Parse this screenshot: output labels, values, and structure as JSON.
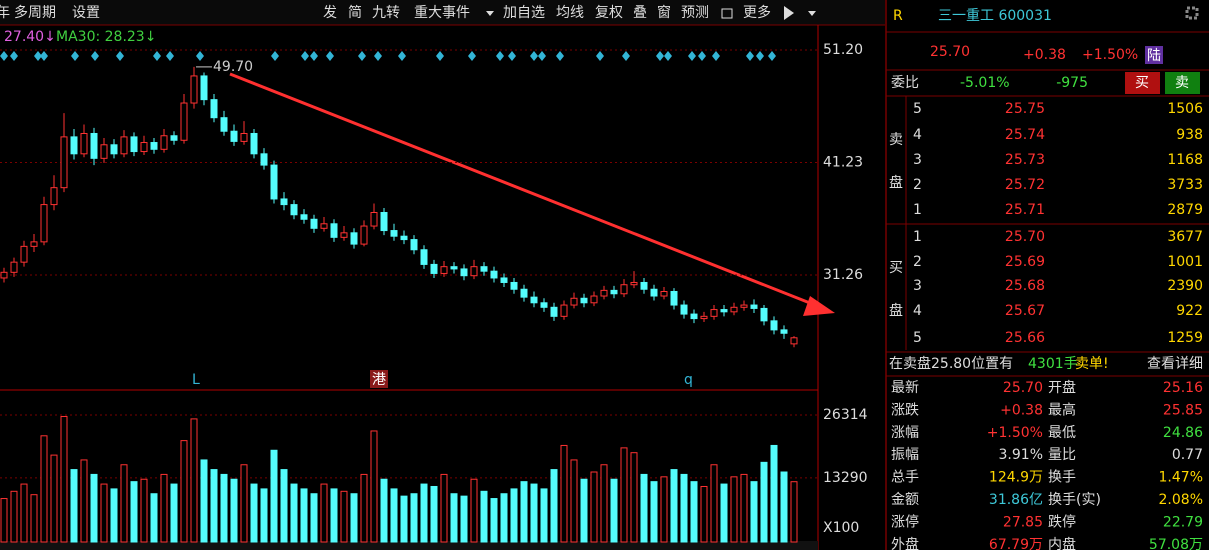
{
  "toolbar": {
    "left": [
      "年",
      "多周期",
      "设置"
    ],
    "right": [
      "发",
      "简",
      "九转",
      "重大事件",
      "加自选",
      "均线",
      "复权",
      "叠",
      "窗",
      "预测",
      "更多"
    ]
  },
  "legend": {
    "ma20": "27.40↓",
    "ma30": "MA30: 28.23↓"
  },
  "chart": {
    "price_ylim": [
      21.25,
      52.97
    ],
    "price_ticks": [
      {
        "value": 51.2,
        "label": "51.20"
      },
      {
        "value": 41.23,
        "label": "41.23"
      },
      {
        "value": 31.26,
        "label": "31.26"
      }
    ],
    "peak_label": {
      "value": 49.7,
      "label": "49.70"
    },
    "markers": [
      "L",
      "港",
      "q"
    ],
    "candles": [
      [
        31.0,
        31.9,
        30.6,
        31.5
      ],
      [
        31.5,
        32.8,
        31.1,
        32.4
      ],
      [
        32.4,
        34.3,
        32.0,
        33.8
      ],
      [
        33.8,
        34.9,
        33.3,
        34.2
      ],
      [
        34.2,
        38.2,
        33.9,
        37.5
      ],
      [
        37.5,
        40.1,
        37.0,
        39.0
      ],
      [
        39.0,
        45.6,
        38.6,
        43.5
      ],
      [
        43.5,
        44.2,
        41.5,
        42.0
      ],
      [
        42.0,
        44.6,
        41.7,
        43.8
      ],
      [
        43.8,
        44.3,
        41.0,
        41.6
      ],
      [
        41.6,
        43.4,
        41.2,
        42.8
      ],
      [
        42.8,
        43.3,
        41.6,
        42.0
      ],
      [
        42.0,
        44.1,
        41.7,
        43.5
      ],
      [
        43.5,
        43.9,
        41.8,
        42.2
      ],
      [
        42.2,
        43.6,
        41.9,
        43.0
      ],
      [
        43.0,
        43.4,
        42.0,
        42.4
      ],
      [
        42.4,
        44.2,
        42.1,
        43.6
      ],
      [
        43.6,
        44.0,
        42.8,
        43.2
      ],
      [
        43.2,
        47.3,
        42.9,
        46.5
      ],
      [
        46.5,
        49.7,
        46.0,
        48.9
      ],
      [
        48.9,
        49.2,
        46.3,
        46.8
      ],
      [
        46.8,
        47.3,
        44.8,
        45.2
      ],
      [
        45.2,
        45.8,
        43.6,
        44.0
      ],
      [
        44.0,
        44.6,
        42.7,
        43.1
      ],
      [
        43.1,
        44.9,
        42.8,
        43.8
      ],
      [
        43.8,
        44.2,
        41.6,
        42.0
      ],
      [
        42.0,
        42.5,
        40.6,
        41.0
      ],
      [
        41.0,
        41.4,
        37.6,
        38.0
      ],
      [
        38.0,
        38.6,
        37.0,
        37.5
      ],
      [
        37.5,
        37.9,
        36.2,
        36.6
      ],
      [
        36.6,
        37.1,
        35.8,
        36.2
      ],
      [
        36.2,
        36.6,
        35.0,
        35.4
      ],
      [
        35.4,
        36.4,
        35.1,
        35.8
      ],
      [
        35.8,
        36.2,
        34.2,
        34.6
      ],
      [
        34.6,
        35.6,
        34.3,
        35.0
      ],
      [
        35.0,
        35.4,
        33.6,
        34.0
      ],
      [
        34.0,
        36.1,
        33.8,
        35.6
      ],
      [
        35.6,
        37.6,
        35.3,
        36.8
      ],
      [
        36.8,
        37.2,
        34.8,
        35.2
      ],
      [
        35.2,
        35.8,
        34.3,
        34.7
      ],
      [
        34.7,
        35.2,
        34.0,
        34.4
      ],
      [
        34.4,
        34.8,
        33.1,
        33.5
      ],
      [
        33.5,
        33.9,
        31.8,
        32.2
      ],
      [
        32.2,
        32.6,
        31.0,
        31.4
      ],
      [
        31.4,
        32.5,
        31.1,
        32.0
      ],
      [
        32.0,
        32.4,
        31.4,
        31.8
      ],
      [
        31.8,
        32.2,
        30.8,
        31.2
      ],
      [
        31.2,
        32.6,
        30.9,
        32.0
      ],
      [
        32.0,
        32.4,
        31.2,
        31.6
      ],
      [
        31.6,
        32.0,
        30.6,
        31.0
      ],
      [
        31.0,
        31.4,
        30.2,
        30.6
      ],
      [
        30.6,
        31.0,
        29.6,
        30.0
      ],
      [
        30.0,
        30.4,
        28.9,
        29.3
      ],
      [
        29.3,
        29.8,
        28.4,
        28.8
      ],
      [
        28.8,
        29.2,
        28.0,
        28.4
      ],
      [
        28.4,
        28.8,
        27.2,
        27.6
      ],
      [
        27.6,
        29.0,
        27.3,
        28.6
      ],
      [
        28.6,
        29.7,
        28.3,
        29.2
      ],
      [
        29.2,
        29.6,
        28.4,
        28.8
      ],
      [
        28.8,
        29.8,
        28.5,
        29.4
      ],
      [
        29.4,
        30.3,
        29.1,
        29.9
      ],
      [
        29.9,
        30.3,
        29.2,
        29.6
      ],
      [
        29.6,
        30.9,
        29.3,
        30.4
      ],
      [
        30.4,
        31.6,
        30.1,
        30.6
      ],
      [
        30.6,
        31.0,
        29.6,
        30.0
      ],
      [
        30.0,
        30.4,
        29.0,
        29.4
      ],
      [
        29.4,
        30.2,
        29.1,
        29.8
      ],
      [
        29.8,
        30.1,
        28.2,
        28.6
      ],
      [
        28.6,
        29.0,
        27.4,
        27.8
      ],
      [
        27.8,
        28.2,
        27.0,
        27.4
      ],
      [
        27.4,
        28.0,
        27.1,
        27.6
      ],
      [
        27.6,
        28.6,
        27.3,
        28.2
      ],
      [
        28.2,
        28.6,
        27.6,
        28.0
      ],
      [
        28.0,
        28.8,
        27.7,
        28.4
      ],
      [
        28.4,
        29.0,
        28.1,
        28.6
      ],
      [
        28.6,
        29.1,
        27.9,
        28.3
      ],
      [
        28.3,
        28.6,
        26.8,
        27.2
      ],
      [
        27.2,
        27.6,
        26.0,
        26.4
      ],
      [
        26.4,
        26.8,
        25.6,
        26.1
      ],
      [
        25.16,
        25.85,
        24.86,
        25.7
      ]
    ],
    "volume_ylim": [
      0,
      30450
    ],
    "volume_ticks": [
      26314,
      13290
    ],
    "volume_unit": "X100",
    "volumes": [
      9000,
      10500,
      12000,
      9800,
      22000,
      18000,
      26000,
      15000,
      17000,
      14000,
      12000,
      11000,
      16000,
      12500,
      13000,
      10000,
      14000,
      12000,
      21000,
      25500,
      17000,
      15000,
      14000,
      13000,
      16000,
      12000,
      11000,
      19000,
      15000,
      12000,
      11000,
      10000,
      12000,
      11000,
      10500,
      10000,
      14000,
      23000,
      13000,
      11000,
      9500,
      10000,
      12000,
      11500,
      14000,
      10000,
      9500,
      13000,
      10500,
      9000,
      10000,
      11000,
      12500,
      12000,
      11000,
      15000,
      20000,
      17000,
      13000,
      14500,
      16000,
      13000,
      19500,
      18500,
      14000,
      12500,
      13500,
      15000,
      14000,
      12500,
      11500,
      16000,
      12000,
      13500,
      14000,
      12500,
      16500,
      20000,
      14500,
      12490
    ]
  },
  "quote": {
    "badge": "R",
    "name": "三一重工 600031",
    "price": "25.70",
    "change": "+0.38",
    "pct": "+1.50%",
    "exchange": "陆",
    "ratio_label": "委比",
    "ratio": "-5.01%",
    "ratio_diff": "-975",
    "buy_btn": "买",
    "sell_btn": "卖",
    "sell_label": [
      "卖",
      "盘"
    ],
    "buy_label": [
      "买",
      "盘"
    ],
    "sell": [
      [
        "5",
        "25.75",
        "1506"
      ],
      [
        "4",
        "25.74",
        "938"
      ],
      [
        "3",
        "25.73",
        "1168"
      ],
      [
        "2",
        "25.72",
        "3733"
      ],
      [
        "1",
        "25.71",
        "2879"
      ]
    ],
    "buy": [
      [
        "1",
        "25.70",
        "3677"
      ],
      [
        "2",
        "25.69",
        "1001"
      ],
      [
        "3",
        "25.68",
        "2390"
      ],
      [
        "4",
        "25.67",
        "922"
      ],
      [
        "5",
        "25.66",
        "1259"
      ]
    ],
    "alert": [
      "在卖盘25.80位置有",
      "4301手",
      "卖单!"
    ],
    "detail": "查看详细",
    "stats": [
      [
        "最新",
        "25.70",
        "开盘",
        "25.16"
      ],
      [
        "涨跌",
        "+0.38",
        "最高",
        "25.85"
      ],
      [
        "涨幅",
        "+1.50%",
        "最低",
        "24.86"
      ],
      [
        "振幅",
        "3.91%",
        "量比",
        "0.77"
      ],
      [
        "总手",
        "124.9万",
        "换手",
        "1.47%"
      ],
      [
        "金额",
        "31.86亿",
        "换手(实)",
        "2.08%"
      ],
      [
        "涨停",
        "27.85",
        "跌停",
        "22.79"
      ],
      [
        "外盘",
        "67.79万",
        "内盘",
        "57.08万"
      ]
    ]
  }
}
